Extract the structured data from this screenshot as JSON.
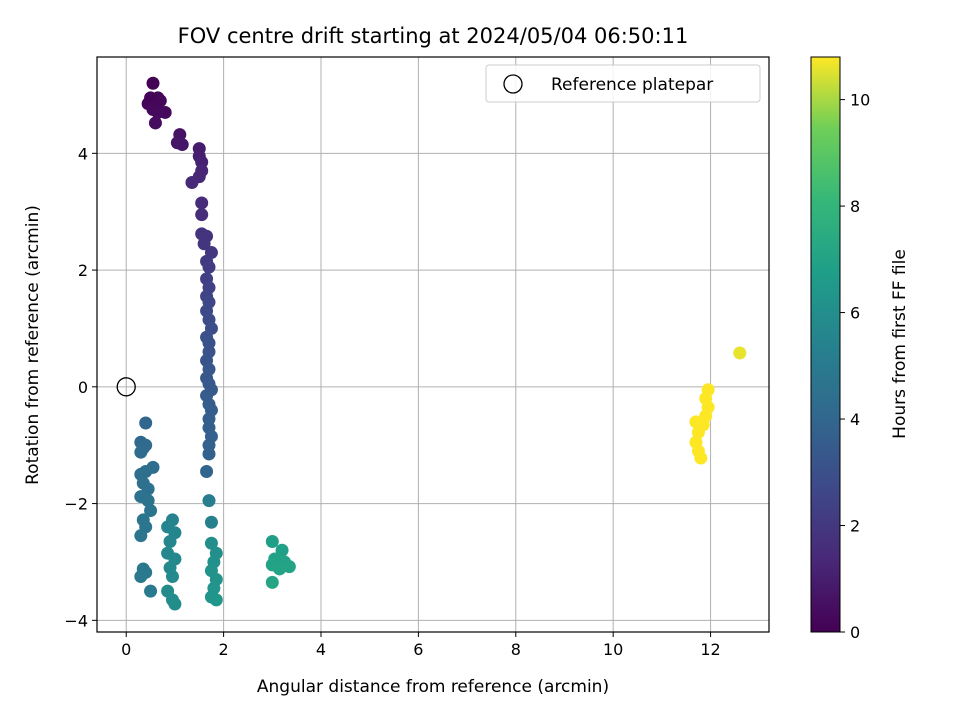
{
  "chart_data": {
    "type": "scatter",
    "title": "FOV centre drift starting at 2024/05/04 06:50:11",
    "xlabel": "Angular distance from reference (arcmin)",
    "ylabel": "Rotation from reference (arcmin)",
    "xlim": [
      -0.6,
      13.2
    ],
    "ylim": [
      -4.2,
      5.65
    ],
    "xticks": [
      0,
      2,
      4,
      6,
      8,
      10,
      12
    ],
    "yticks": [
      -4,
      -2,
      0,
      2,
      4
    ],
    "grid": true,
    "legend": {
      "placement": "top-right",
      "entries": [
        "Reference platepar"
      ]
    },
    "reference_point": {
      "x": 0,
      "y": 0,
      "label": "Reference platepar"
    },
    "colorbar": {
      "label": "Hours from first FF file",
      "colormap": "viridis",
      "range": [
        0,
        10.8
      ],
      "ticks": [
        0,
        2,
        4,
        6,
        8,
        10
      ]
    },
    "series": [
      {
        "points": [
          {
            "x": 0.55,
            "y": 5.2,
            "c": 0.05
          },
          {
            "x": 0.5,
            "y": 4.95,
            "c": 0.1
          },
          {
            "x": 0.65,
            "y": 4.95,
            "c": 0.12
          },
          {
            "x": 0.45,
            "y": 4.85,
            "c": 0.15
          },
          {
            "x": 0.6,
            "y": 4.8,
            "c": 0.2
          },
          {
            "x": 0.7,
            "y": 4.9,
            "c": 0.22
          },
          {
            "x": 0.55,
            "y": 4.75,
            "c": 0.25
          },
          {
            "x": 0.8,
            "y": 4.7,
            "c": 0.3
          },
          {
            "x": 0.65,
            "y": 4.7,
            "c": 0.32
          },
          {
            "x": 0.6,
            "y": 4.52,
            "c": 0.4
          },
          {
            "x": 1.1,
            "y": 4.32,
            "c": 0.6
          },
          {
            "x": 1.05,
            "y": 4.18,
            "c": 0.7
          },
          {
            "x": 1.15,
            "y": 4.15,
            "c": 0.75
          },
          {
            "x": 1.5,
            "y": 4.08,
            "c": 0.9
          },
          {
            "x": 1.5,
            "y": 3.95,
            "c": 1.0
          },
          {
            "x": 1.55,
            "y": 3.85,
            "c": 1.1
          },
          {
            "x": 1.55,
            "y": 3.7,
            "c": 1.2
          },
          {
            "x": 1.5,
            "y": 3.6,
            "c": 1.3
          },
          {
            "x": 1.35,
            "y": 3.5,
            "c": 1.4
          },
          {
            "x": 1.55,
            "y": 3.15,
            "c": 1.5
          },
          {
            "x": 1.55,
            "y": 2.95,
            "c": 1.6
          },
          {
            "x": 1.55,
            "y": 2.62,
            "c": 1.8
          },
          {
            "x": 1.65,
            "y": 2.58,
            "c": 1.85
          },
          {
            "x": 1.6,
            "y": 2.45,
            "c": 1.9
          },
          {
            "x": 1.75,
            "y": 2.3,
            "c": 2.0
          },
          {
            "x": 1.65,
            "y": 2.15,
            "c": 2.1
          },
          {
            "x": 1.7,
            "y": 2.05,
            "c": 2.2
          },
          {
            "x": 1.65,
            "y": 1.85,
            "c": 2.3
          },
          {
            "x": 1.7,
            "y": 1.7,
            "c": 2.4
          },
          {
            "x": 1.65,
            "y": 1.55,
            "c": 2.5
          },
          {
            "x": 1.7,
            "y": 1.45,
            "c": 2.6
          },
          {
            "x": 1.65,
            "y": 1.3,
            "c": 2.7
          },
          {
            "x": 1.7,
            "y": 1.15,
            "c": 2.8
          },
          {
            "x": 1.75,
            "y": 1.0,
            "c": 2.9
          },
          {
            "x": 1.65,
            "y": 0.85,
            "c": 3.0
          },
          {
            "x": 1.7,
            "y": 0.75,
            "c": 3.1
          },
          {
            "x": 1.7,
            "y": 0.6,
            "c": 3.15
          },
          {
            "x": 1.65,
            "y": 0.45,
            "c": 3.2
          },
          {
            "x": 1.7,
            "y": 0.3,
            "c": 3.3
          },
          {
            "x": 1.65,
            "y": 0.15,
            "c": 3.35
          },
          {
            "x": 1.7,
            "y": 0.05,
            "c": 3.4
          },
          {
            "x": 1.75,
            "y": -0.05,
            "c": 3.45
          },
          {
            "x": 1.65,
            "y": -0.15,
            "c": 3.5
          },
          {
            "x": 1.7,
            "y": -0.3,
            "c": 3.55
          },
          {
            "x": 1.75,
            "y": -0.4,
            "c": 3.6
          },
          {
            "x": 1.7,
            "y": -0.55,
            "c": 3.65
          },
          {
            "x": 1.7,
            "y": -0.7,
            "c": 3.7
          },
          {
            "x": 1.75,
            "y": -0.85,
            "c": 3.75
          },
          {
            "x": 1.7,
            "y": -1.0,
            "c": 3.8
          },
          {
            "x": 1.7,
            "y": -1.15,
            "c": 3.85
          },
          {
            "x": 1.65,
            "y": -1.45,
            "c": 3.9
          },
          {
            "x": 0.4,
            "y": -0.62,
            "c": 4.0
          },
          {
            "x": 0.3,
            "y": -0.95,
            "c": 4.1
          },
          {
            "x": 0.35,
            "y": -1.05,
            "c": 4.15
          },
          {
            "x": 0.4,
            "y": -1.0,
            "c": 4.2
          },
          {
            "x": 0.3,
            "y": -1.12,
            "c": 4.25
          },
          {
            "x": 0.55,
            "y": -1.38,
            "c": 4.3
          },
          {
            "x": 0.4,
            "y": -1.45,
            "c": 4.35
          },
          {
            "x": 0.3,
            "y": -1.5,
            "c": 4.4
          },
          {
            "x": 0.35,
            "y": -1.65,
            "c": 4.45
          },
          {
            "x": 0.45,
            "y": -1.75,
            "c": 4.5
          },
          {
            "x": 0.3,
            "y": -1.88,
            "c": 4.55
          },
          {
            "x": 0.45,
            "y": -1.95,
            "c": 4.6
          },
          {
            "x": 0.5,
            "y": -2.12,
            "c": 4.65
          },
          {
            "x": 0.35,
            "y": -2.28,
            "c": 4.7
          },
          {
            "x": 0.4,
            "y": -2.4,
            "c": 4.75
          },
          {
            "x": 0.3,
            "y": -2.55,
            "c": 4.8
          },
          {
            "x": 0.35,
            "y": -3.12,
            "c": 4.85
          },
          {
            "x": 0.4,
            "y": -3.18,
            "c": 4.9
          },
          {
            "x": 0.3,
            "y": -3.25,
            "c": 4.95
          },
          {
            "x": 0.5,
            "y": -3.5,
            "c": 5.0
          },
          {
            "x": 1.7,
            "y": -1.95,
            "c": 5.2
          },
          {
            "x": 1.75,
            "y": -2.32,
            "c": 5.3
          },
          {
            "x": 0.95,
            "y": -2.28,
            "c": 5.4
          },
          {
            "x": 0.85,
            "y": -2.4,
            "c": 5.5
          },
          {
            "x": 1.0,
            "y": -2.5,
            "c": 5.55
          },
          {
            "x": 0.9,
            "y": -2.65,
            "c": 5.6
          },
          {
            "x": 0.85,
            "y": -2.85,
            "c": 5.65
          },
          {
            "x": 1.0,
            "y": -2.95,
            "c": 5.7
          },
          {
            "x": 0.9,
            "y": -3.1,
            "c": 5.75
          },
          {
            "x": 0.95,
            "y": -3.25,
            "c": 5.8
          },
          {
            "x": 0.85,
            "y": -3.5,
            "c": 5.85
          },
          {
            "x": 0.95,
            "y": -3.65,
            "c": 5.9
          },
          {
            "x": 1.0,
            "y": -3.72,
            "c": 5.95
          },
          {
            "x": 1.75,
            "y": -2.68,
            "c": 6.0
          },
          {
            "x": 1.85,
            "y": -2.85,
            "c": 6.05
          },
          {
            "x": 1.8,
            "y": -3.0,
            "c": 6.1
          },
          {
            "x": 1.75,
            "y": -3.15,
            "c": 6.15
          },
          {
            "x": 1.85,
            "y": -3.3,
            "c": 6.2
          },
          {
            "x": 1.8,
            "y": -3.45,
            "c": 6.25
          },
          {
            "x": 1.75,
            "y": -3.6,
            "c": 6.3
          },
          {
            "x": 1.85,
            "y": -3.65,
            "c": 6.35
          },
          {
            "x": 3.0,
            "y": -2.65,
            "c": 6.8
          },
          {
            "x": 3.2,
            "y": -2.8,
            "c": 6.85
          },
          {
            "x": 3.05,
            "y": -2.95,
            "c": 6.9
          },
          {
            "x": 3.25,
            "y": -3.0,
            "c": 6.95
          },
          {
            "x": 3.0,
            "y": -3.05,
            "c": 7.0
          },
          {
            "x": 3.35,
            "y": -3.08,
            "c": 7.05
          },
          {
            "x": 3.15,
            "y": -3.12,
            "c": 7.1
          },
          {
            "x": 3.0,
            "y": -3.35,
            "c": 7.15
          },
          {
            "x": 12.6,
            "y": 0.58,
            "c": 10.6
          },
          {
            "x": 11.95,
            "y": -0.05,
            "c": 10.8
          },
          {
            "x": 11.9,
            "y": -0.2,
            "c": 10.8
          },
          {
            "x": 11.95,
            "y": -0.35,
            "c": 10.8
          },
          {
            "x": 11.9,
            "y": -0.5,
            "c": 10.8
          },
          {
            "x": 11.85,
            "y": -0.65,
            "c": 10.8
          },
          {
            "x": 11.7,
            "y": -0.6,
            "c": 10.8
          },
          {
            "x": 11.75,
            "y": -0.78,
            "c": 10.8
          },
          {
            "x": 11.7,
            "y": -0.95,
            "c": 10.8
          },
          {
            "x": 11.75,
            "y": -1.1,
            "c": 10.8
          },
          {
            "x": 11.8,
            "y": -1.22,
            "c": 10.8
          }
        ]
      }
    ]
  }
}
